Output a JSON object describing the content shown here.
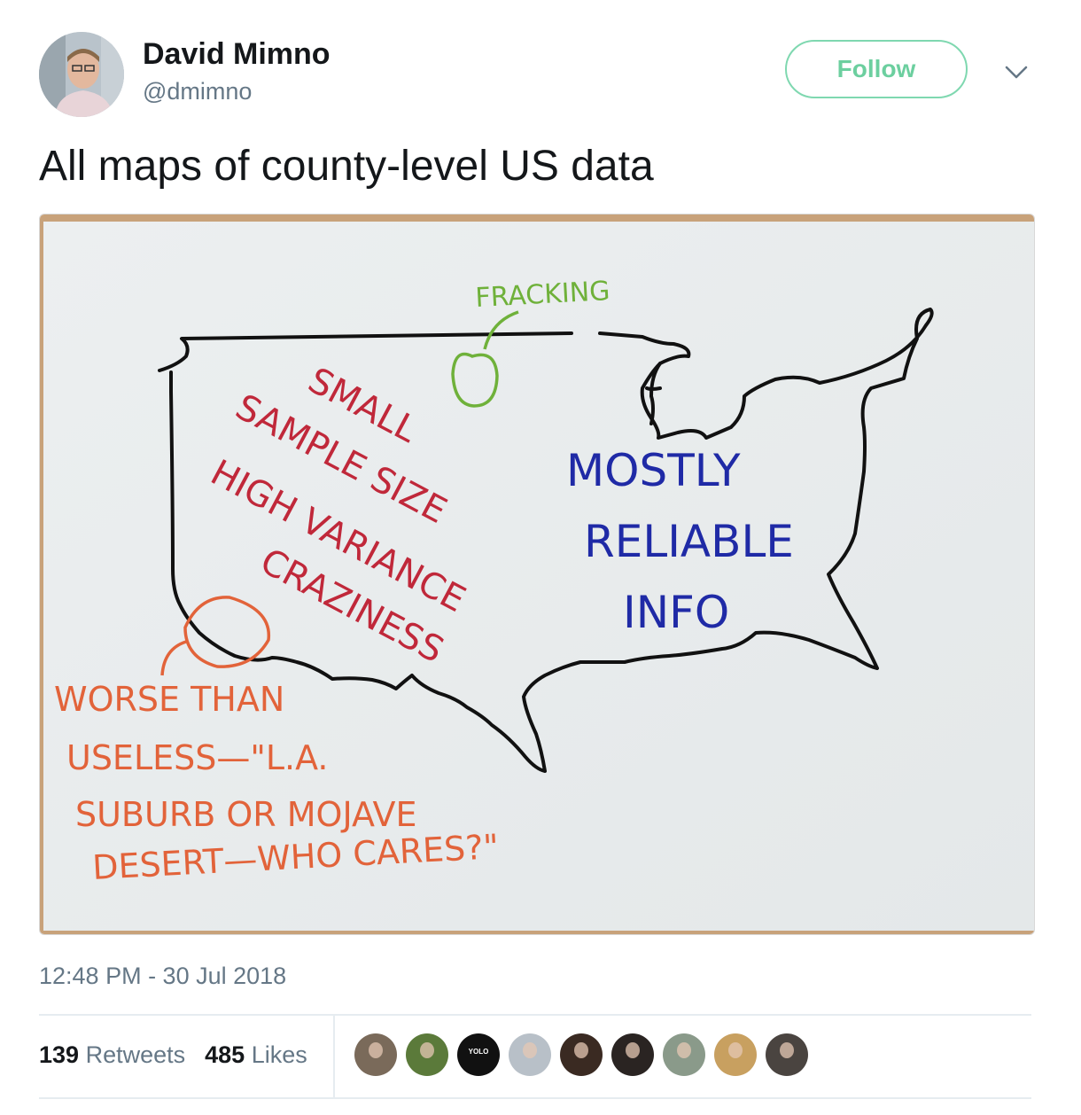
{
  "tweet": {
    "author_name": "David Mimno",
    "author_handle": "@dmimno",
    "follow_label": "Follow",
    "text": "All maps of county-level US data",
    "timestamp": "12:48 PM - 30 Jul 2018",
    "retweets_count": "139",
    "retweets_label": "Retweets",
    "likes_count": "485",
    "likes_label": "Likes"
  },
  "drawing": {
    "label_fracking": "FRACKING",
    "label_red": [
      "SMALL",
      "SAMPLE SIZE",
      "HIGH VARIANCE",
      "CRAZINESS"
    ],
    "label_blue": [
      "MOSTLY",
      "RELIABLE",
      "INFO"
    ],
    "label_orange": [
      "WORSE THAN",
      "USELESS—\"L.A.",
      "SUBURB OR MOJAVE",
      "DESERT—WHO CARES?\""
    ],
    "colors": {
      "green": "#6fb13a",
      "red": "#c0283a",
      "blue": "#1f2aa6",
      "orange": "#e2633a",
      "ink": "#111111",
      "follow": "#6ccf9f"
    }
  },
  "likers": [
    {
      "name": "liker-avatar-1",
      "color": "#7a6a5a"
    },
    {
      "name": "liker-avatar-2",
      "color": "#5b7a3a"
    },
    {
      "name": "liker-avatar-3",
      "color": "#111111",
      "text": "YOLO"
    },
    {
      "name": "liker-avatar-4",
      "color": "#b8c0c8"
    },
    {
      "name": "liker-avatar-5",
      "color": "#3a2a22"
    },
    {
      "name": "liker-avatar-6",
      "color": "#2a2422"
    },
    {
      "name": "liker-avatar-7",
      "color": "#8a9a8a"
    },
    {
      "name": "liker-avatar-8",
      "color": "#c8a060"
    },
    {
      "name": "liker-avatar-9",
      "color": "#4a4440"
    }
  ]
}
